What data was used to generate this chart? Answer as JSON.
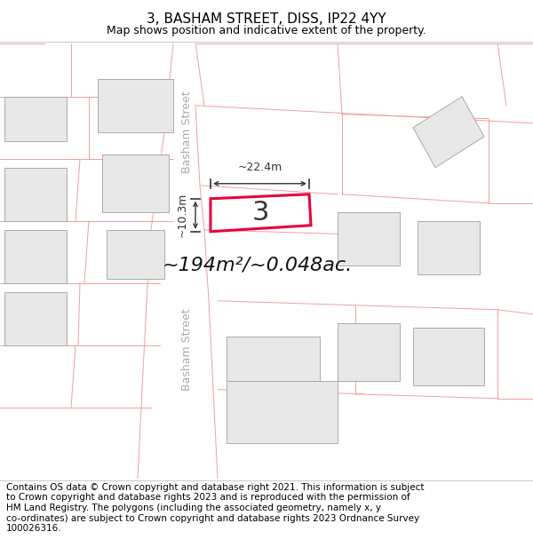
{
  "title": "3, BASHAM STREET, DISS, IP22 4YY",
  "subtitle": "Map shows position and indicative extent of the property.",
  "footer": "Contains OS data © Crown copyright and database right 2021. This information is subject\nto Crown copyright and database rights 2023 and is reproduced with the permission of\nHM Land Registry. The polygons (including the associated geometry, namely x, y\nco-ordinates) are subject to Crown copyright and database rights 2023 Ordnance Survey\n100026316.",
  "map_bg": "#ffffff",
  "page_bg": "#ffffff",
  "footer_bg": "#ffffff",
  "road_line_color": "#f0a0a0",
  "building_fill": "#e8e8e8",
  "building_outline": "#aaaaaa",
  "highlight_color": "#e8003d",
  "street_label_color": "#aaaaaa",
  "street_label": "Basham Street",
  "property_label": "3",
  "area_label": "~194m²/~0.048ac.",
  "dim_width": "~22.4m",
  "dim_height": "~10.3m",
  "title_fontsize": 11,
  "subtitle_fontsize": 9,
  "footer_fontsize": 7.5,
  "label_fontsize": 22,
  "area_fontsize": 16,
  "dim_fontsize": 9,
  "street_fontsize": 9
}
